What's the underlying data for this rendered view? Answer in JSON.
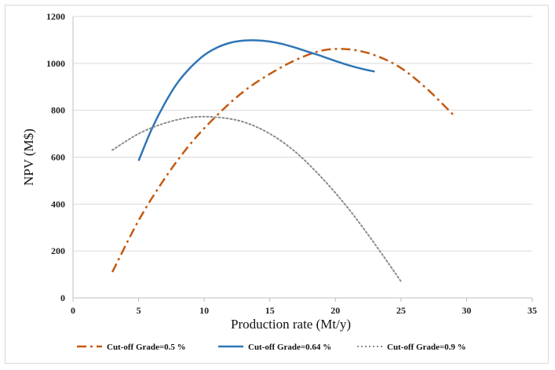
{
  "chart_data": {
    "type": "line",
    "title": "",
    "xlabel": "Production rate (Mt/y)",
    "ylabel": "NPV (M$)",
    "xlim": [
      0,
      35
    ],
    "ylim": [
      0,
      1200
    ],
    "x_ticks": [
      0,
      5,
      10,
      15,
      20,
      25,
      30,
      35
    ],
    "y_ticks": [
      0,
      200,
      400,
      600,
      800,
      1000,
      1200
    ],
    "grid": "horizontal",
    "legend_position": "bottom",
    "series": [
      {
        "name": "Cut-off Grade=0.5 %",
        "color": "#c55a11",
        "style": "dash-dot",
        "x": [
          3,
          5,
          7,
          9,
          11,
          13,
          15,
          17,
          19,
          21,
          23,
          25,
          27,
          29
        ],
        "y": [
          110,
          330,
          510,
          660,
          780,
          880,
          955,
          1015,
          1055,
          1060,
          1035,
          980,
          890,
          780
        ]
      },
      {
        "name": "Cut-off Grade=0.64 %",
        "color": "#2e75b6",
        "style": "solid",
        "x": [
          5,
          6,
          7,
          8,
          9,
          10,
          11,
          12,
          13,
          14,
          15,
          16,
          17,
          18,
          19,
          20,
          21,
          22,
          23
        ],
        "y": [
          585,
          720,
          830,
          920,
          985,
          1035,
          1068,
          1088,
          1097,
          1098,
          1093,
          1082,
          1066,
          1048,
          1030,
          1010,
          992,
          977,
          965
        ]
      },
      {
        "name": "Cut-off Grade=0.9 %",
        "color": "#8c8c8c",
        "style": "dotted",
        "x": [
          3,
          5,
          7,
          9,
          11,
          13,
          15,
          17,
          19,
          21,
          23,
          25
        ],
        "y": [
          630,
          700,
          745,
          770,
          770,
          750,
          700,
          620,
          510,
          380,
          230,
          70
        ]
      }
    ]
  }
}
